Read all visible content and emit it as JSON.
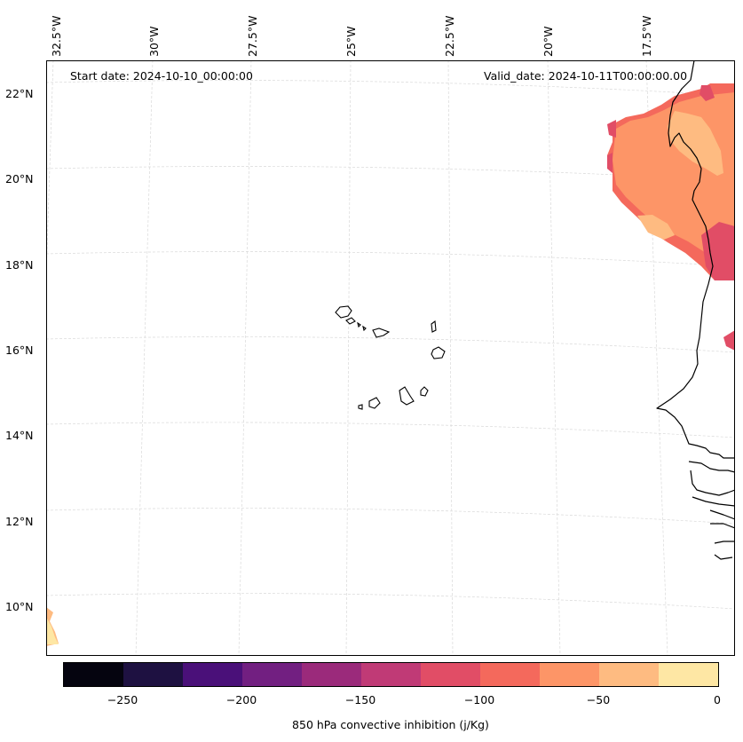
{
  "map": {
    "header": {
      "start_date": "Start date: 2024-10-10_00:00:00",
      "valid_date": "Valid_date: 2024-10-11T00:00:00.00"
    },
    "lon_labels": [
      "32.5°W",
      "30°W",
      "27.5°W",
      "25°W",
      "22.5°W",
      "20°W",
      "17.5°W"
    ],
    "lat_labels": [
      "22°N",
      "20°N",
      "18°N",
      "16°N",
      "14°N",
      "12°N",
      "10°N"
    ],
    "features": [
      "Cape Verde islands",
      "West African coastline"
    ]
  },
  "colorbar": {
    "label": "850 hPa convective inhibition (j/Kg)",
    "ticks": [
      "−250",
      "−200",
      "−150",
      "−100",
      "−50",
      "0"
    ],
    "colors": [
      "#05040f",
      "#1e1141",
      "#4a1079",
      "#721f81",
      "#9b2a7b",
      "#c03a76",
      "#e14d66",
      "#f4695c",
      "#fd9567",
      "#febb81",
      "#fee7a4"
    ]
  }
}
